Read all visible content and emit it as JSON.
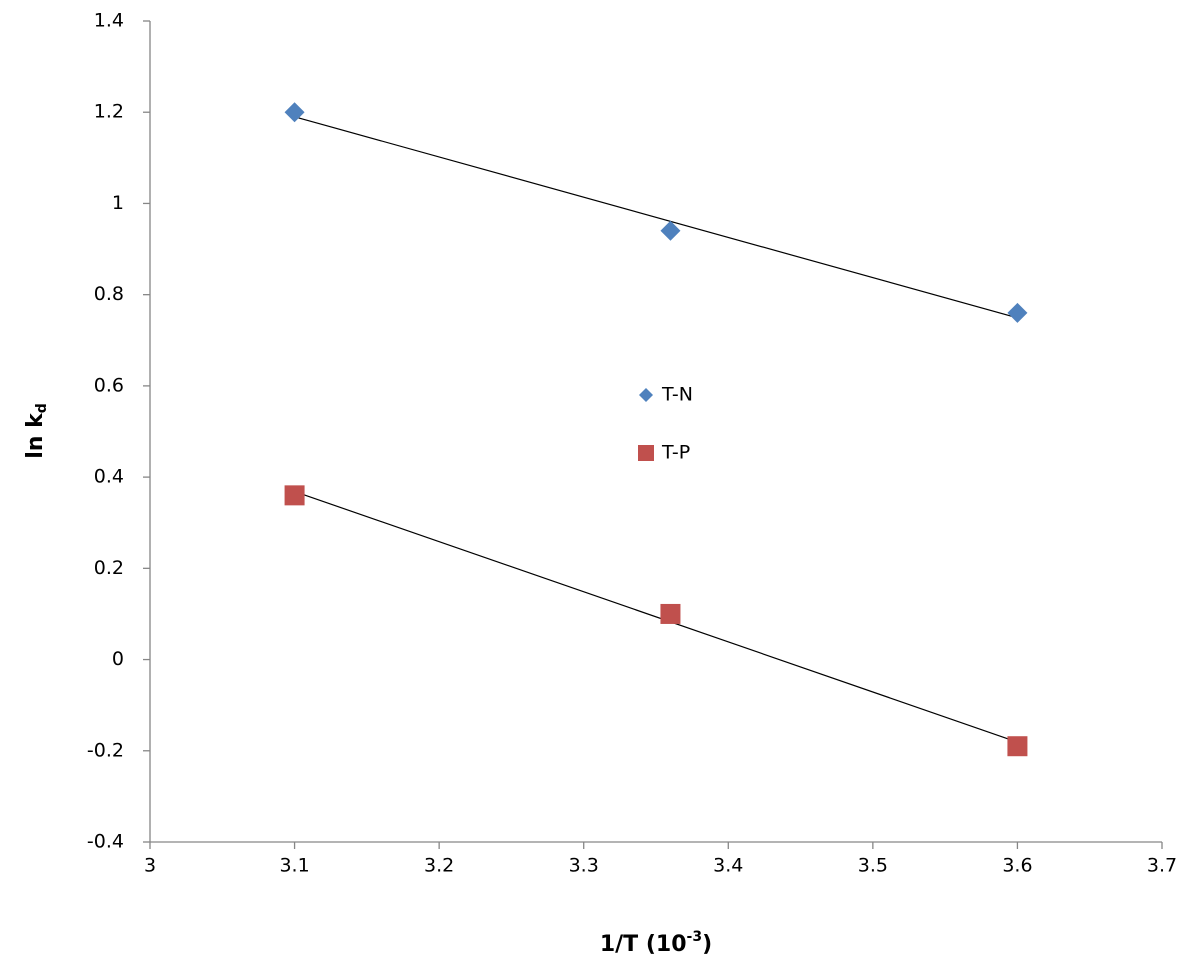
{
  "chart_data": {
    "type": "scatter",
    "x_label": [
      "1/T (10",
      "-3",
      ")"
    ],
    "y_label": [
      "ln k",
      "d"
    ],
    "x": [
      3.1,
      3.36,
      3.6
    ],
    "series": [
      {
        "name": "T-N",
        "color": "#4f81bd",
        "marker": "diamond",
        "values": [
          1.2,
          0.94,
          0.76
        ]
      },
      {
        "name": "T-P",
        "color": "#c0504d",
        "marker": "square",
        "values": [
          0.36,
          0.1,
          -0.19
        ]
      }
    ],
    "xlim": [
      3,
      3.7
    ],
    "xticks": [
      3,
      3.1,
      3.2,
      3.3,
      3.4,
      3.5,
      3.6,
      3.7
    ],
    "ylim": [
      -0.4,
      1.4
    ],
    "yticks": [
      -0.4,
      -0.2,
      0,
      0.2,
      0.4,
      0.6,
      0.8,
      1,
      1.2,
      1.4
    ],
    "grid": false,
    "trendline": true,
    "trendline_color": "#000000",
    "legend_position": "center"
  }
}
